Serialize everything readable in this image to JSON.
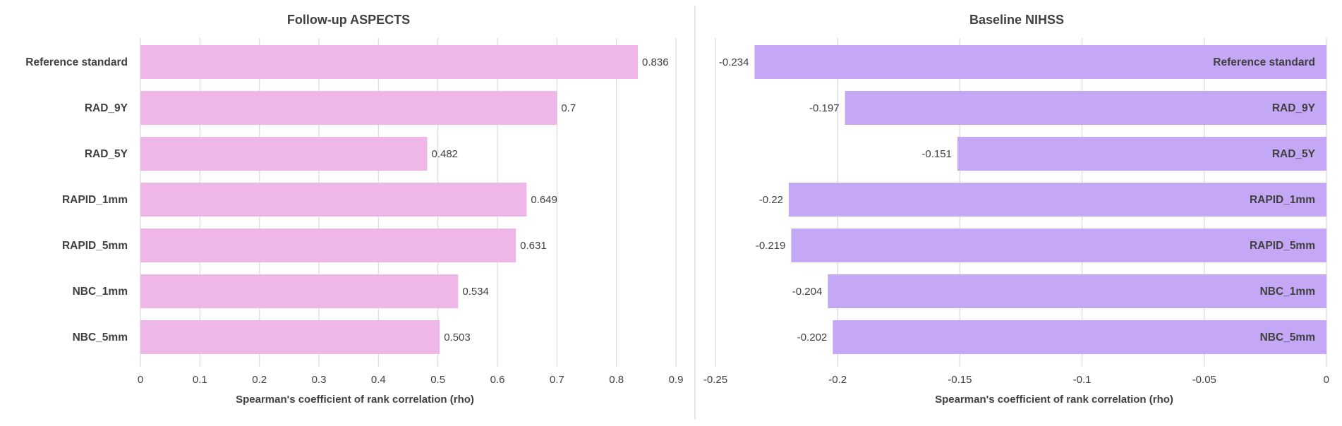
{
  "colors": {
    "left_bar": "#efb6e8",
    "right_bar": "#c4a8f5",
    "grid": "#d9d9d9",
    "text": "#404040",
    "title": "#404040"
  },
  "chart_data": [
    {
      "type": "bar",
      "orientation": "horizontal",
      "title": "Follow-up ASPECTS",
      "xlabel": "Spearman's coefficient of rank correlation (rho)",
      "ylabel": "",
      "xlim": [
        0,
        0.9
      ],
      "ticks": [
        0,
        0.1,
        0.2,
        0.3,
        0.4,
        0.5,
        0.6,
        0.7,
        0.8,
        0.9
      ],
      "tick_labels": [
        "0",
        "0.1",
        "0.2",
        "0.3",
        "0.4",
        "0.5",
        "0.6",
        "0.7",
        "0.8",
        "0.9"
      ],
      "categories": [
        "Reference standard",
        "RAD_9Y",
        "RAD_5Y",
        "RAPID_1mm",
        "RAPID_5mm",
        "NBC_1mm",
        "NBC_5mm"
      ],
      "values": [
        0.836,
        0.7,
        0.482,
        0.649,
        0.631,
        0.534,
        0.503
      ],
      "value_labels": [
        "0.836",
        "0.7",
        "0.482",
        "0.649",
        "0.631",
        "0.534",
        "0.503"
      ],
      "grid": true
    },
    {
      "type": "bar",
      "orientation": "horizontal",
      "title": "Baseline NIHSS",
      "xlabel": "Spearman's coefficient of rank correlation (rho)",
      "ylabel": "",
      "xlim": [
        -0.25,
        0
      ],
      "ticks": [
        -0.25,
        -0.2,
        -0.15,
        -0.1,
        -0.05,
        0
      ],
      "tick_labels": [
        "-0.25",
        "-0.2",
        "-0.15",
        "-0.1",
        "-0.05",
        "0"
      ],
      "categories": [
        "Reference standard",
        "RAD_9Y",
        "RAD_5Y",
        "RAPID_1mm",
        "RAPID_5mm",
        "NBC_1mm",
        "NBC_5mm"
      ],
      "values": [
        -0.234,
        -0.197,
        -0.151,
        -0.22,
        -0.219,
        -0.204,
        -0.202
      ],
      "value_labels": [
        "-0.234",
        "-0.197",
        "-0.151",
        "-0.22",
        "-0.219",
        "-0.204",
        "-0.202"
      ],
      "grid": true
    }
  ]
}
